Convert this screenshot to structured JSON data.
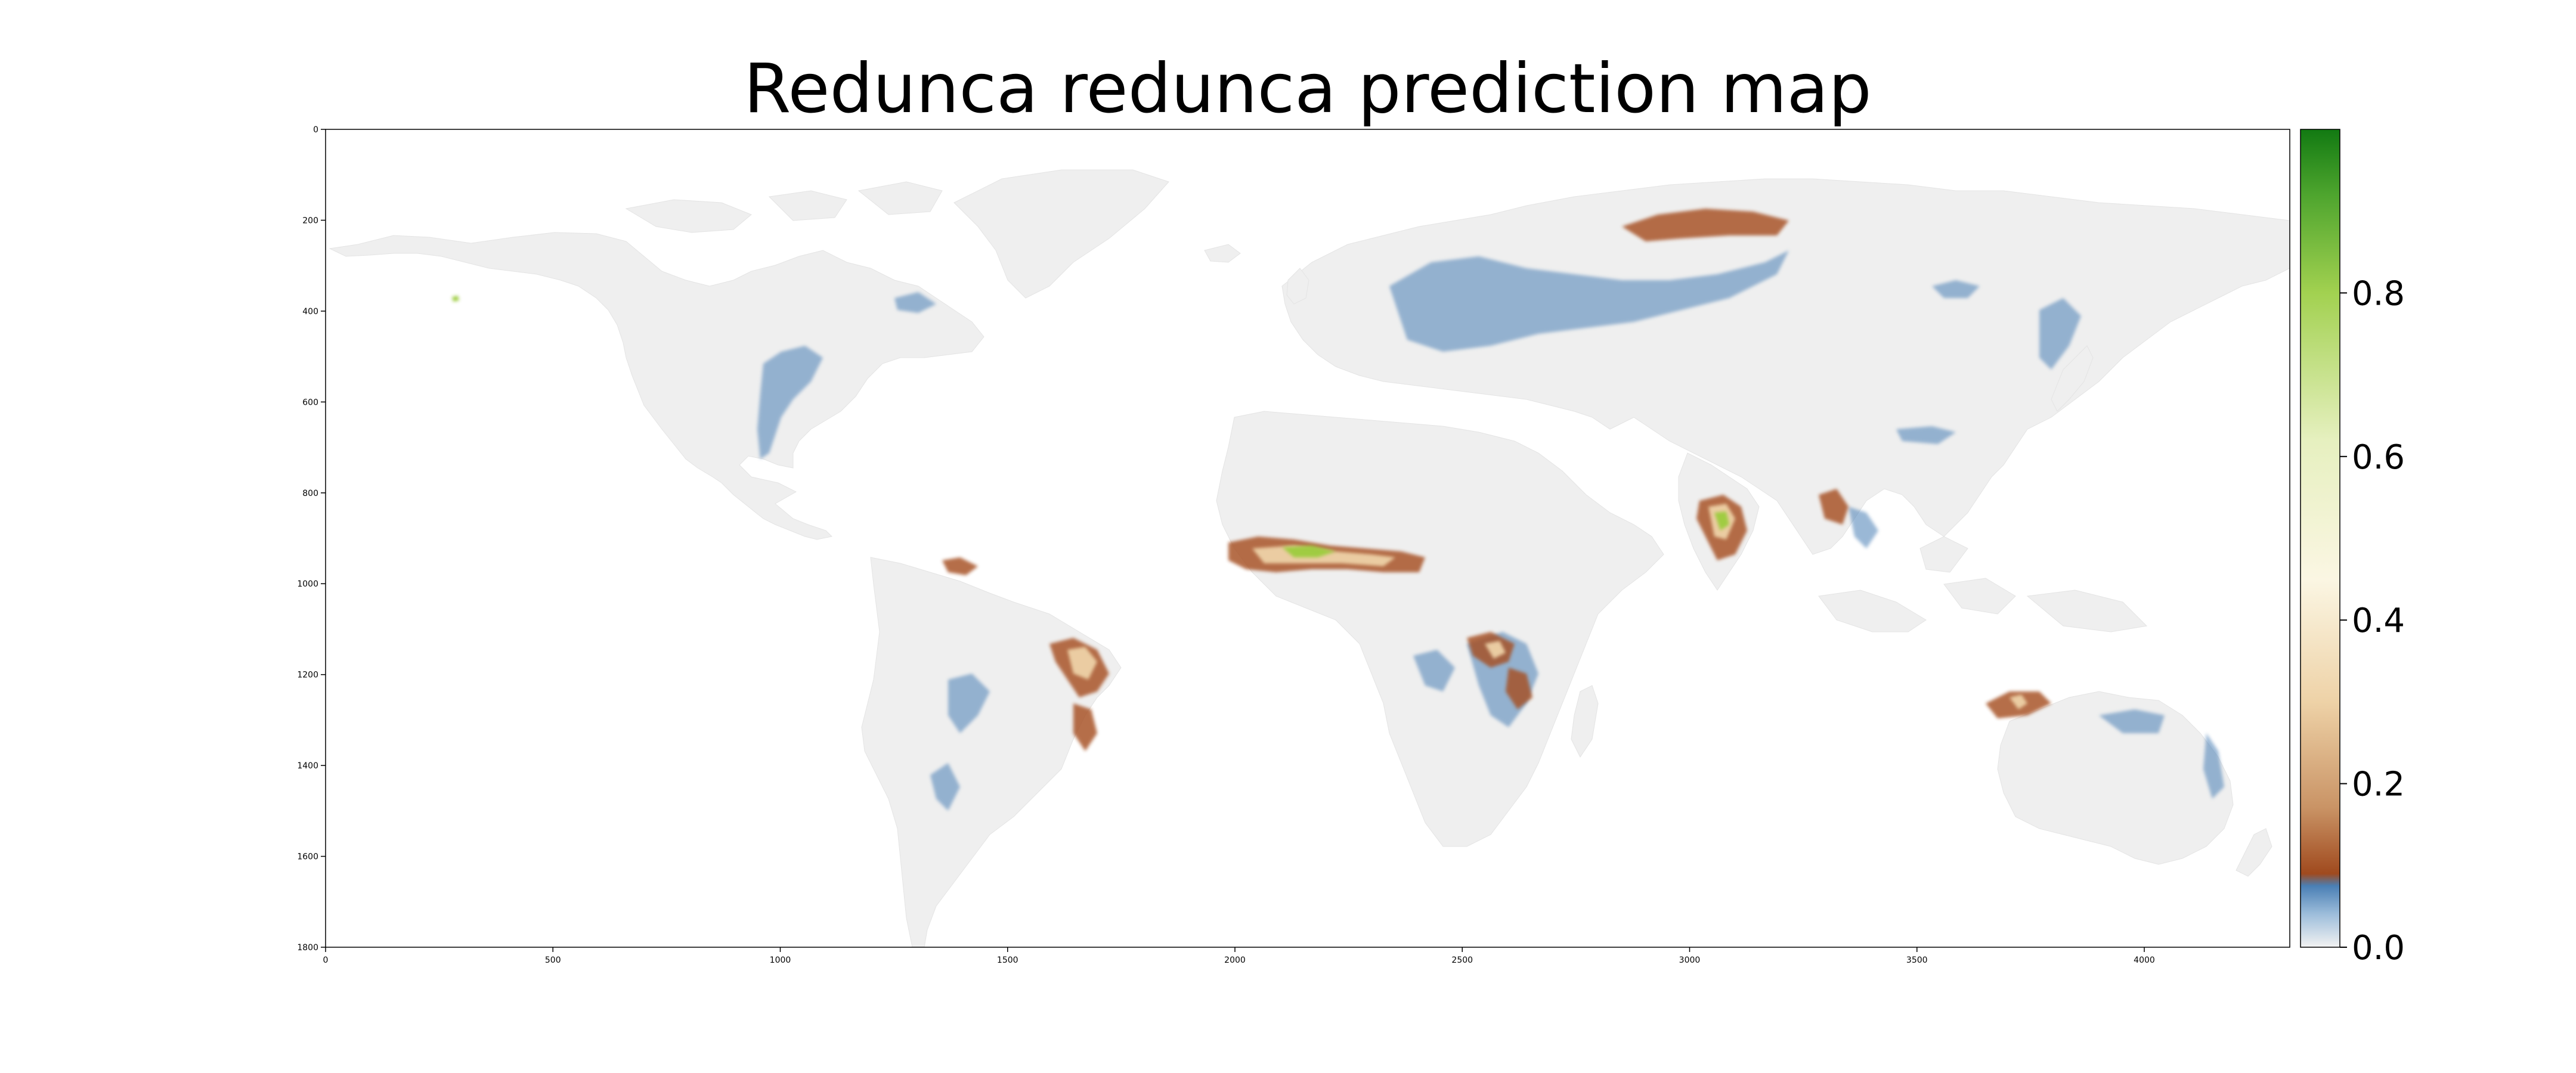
{
  "title": "Redunca redunca prediction map",
  "map": {
    "x_ticks": [
      "0",
      "500",
      "1000",
      "1500",
      "2000",
      "2500",
      "3000",
      "3500",
      "4000"
    ],
    "y_ticks": [
      "0",
      "200",
      "400",
      "600",
      "800",
      "1000",
      "1200",
      "1400",
      "1600",
      "1800"
    ],
    "x_range": [
      0,
      4320
    ],
    "y_range": [
      0,
      1800
    ],
    "land_color": "#efefef",
    "ocean_color": "#ffffff"
  },
  "colorbar": {
    "ticks": [
      "0.0",
      "0.2",
      "0.4",
      "0.6",
      "0.8"
    ],
    "range": [
      0,
      1
    ],
    "colors": {
      "0.00": "#f2f2f2",
      "0.07": "#4a7fb5",
      "0.10": "#a64f22",
      "0.25": "#d9a878",
      "0.50": "#fbf6e3",
      "0.80": "#9ccc3c",
      "1.00": "#127a12"
    }
  }
}
